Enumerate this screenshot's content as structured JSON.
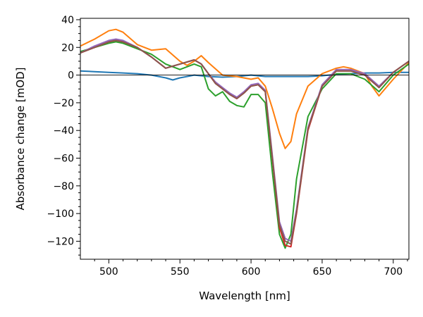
{
  "chart_data": {
    "type": "line",
    "title": "",
    "xlabel": "Wavelength [nm]",
    "ylabel": "Absorbance change [mOD]",
    "xlim": [
      480,
      711
    ],
    "ylim": [
      -133,
      41
    ],
    "x_ticks": [
      500,
      550,
      600,
      650,
      700
    ],
    "y_ticks": [
      40,
      20,
      0,
      -20,
      -40,
      -60,
      -80,
      -100,
      -120
    ],
    "x_tick_labels": [
      "500",
      "550",
      "600",
      "650",
      "700"
    ],
    "y_tick_labels": [
      "40",
      "20",
      "0",
      "−20",
      "−40",
      "−60",
      "−80",
      "−100",
      "−120"
    ],
    "zero_line": true,
    "grid": false,
    "legend": "none",
    "series": [
      {
        "color": "#1f77b4",
        "x": [
          480,
          490,
          500,
          510,
          520,
          530,
          540,
          545,
          550,
          555,
          560,
          570,
          580,
          590,
          600,
          610,
          620,
          630,
          640,
          650,
          660,
          670,
          680,
          690,
          700,
          711
        ],
        "y": [
          3,
          2.5,
          2,
          1.5,
          1,
          0,
          -2,
          -3.5,
          -2,
          -1,
          0,
          -1,
          -1.5,
          -1,
          0,
          -1,
          -1,
          -1,
          -1,
          -0.5,
          0.5,
          1,
          1.5,
          1.5,
          2,
          2
        ]
      },
      {
        "color": "#ff7f0e",
        "x": [
          480,
          490,
          500,
          505,
          510,
          520,
          530,
          540,
          550,
          555,
          560,
          565,
          570,
          580,
          590,
          600,
          605,
          610,
          615,
          620,
          624,
          628,
          632,
          640,
          650,
          660,
          665,
          670,
          680,
          685,
          690,
          700,
          711
        ],
        "y": [
          21,
          26,
          32,
          33,
          31,
          22,
          18,
          19,
          10,
          7,
          10,
          14,
          9,
          0,
          -1,
          -3,
          -2,
          -8,
          -24,
          -42,
          -53,
          -48,
          -28,
          -8,
          1,
          5,
          6,
          5,
          1,
          -8,
          -15,
          -3,
          9
        ]
      },
      {
        "color": "#2ca02c",
        "x": [
          480,
          490,
          500,
          505,
          510,
          520,
          530,
          540,
          550,
          560,
          565,
          570,
          575,
          580,
          585,
          590,
          595,
          600,
          605,
          610,
          615,
          620,
          624,
          628,
          632,
          640,
          650,
          660,
          670,
          680,
          690,
          700,
          711
        ],
        "y": [
          17,
          20,
          23,
          24,
          23,
          19,
          15,
          8,
          4,
          8,
          6,
          -10,
          -15,
          -12,
          -19,
          -22,
          -23,
          -14,
          -14,
          -20,
          -70,
          -115,
          -125,
          -115,
          -75,
          -30,
          -10,
          1,
          1,
          -3,
          -12,
          0,
          8
        ]
      },
      {
        "color": "#d62728",
        "x": [
          480,
          490,
          500,
          505,
          510,
          520,
          530,
          540,
          550,
          560,
          565,
          570,
          575,
          580,
          585,
          590,
          595,
          600,
          605,
          610,
          615,
          620,
          624,
          628,
          632,
          640,
          650,
          660,
          670,
          680,
          690,
          700,
          711
        ],
        "y": [
          16,
          20,
          24,
          25,
          24,
          20,
          13,
          5,
          8,
          11,
          8,
          1,
          -6,
          -10,
          -14,
          -17,
          -13,
          -8,
          -7,
          -12,
          -60,
          -110,
          -123,
          -124,
          -100,
          -40,
          -8,
          3,
          3,
          0,
          -9,
          2,
          10
        ]
      },
      {
        "color": "#9467bd",
        "x": [
          480,
          490,
          500,
          505,
          510,
          520,
          530,
          540,
          550,
          560,
          565,
          570,
          575,
          580,
          585,
          590,
          595,
          600,
          605,
          610,
          615,
          620,
          624,
          628,
          632,
          640,
          650,
          660,
          670,
          680,
          690,
          700,
          711
        ],
        "y": [
          16,
          21,
          25,
          26,
          25,
          20,
          13,
          5,
          8,
          11,
          8,
          1,
          -5,
          -9,
          -13,
          -16,
          -12,
          -7,
          -6,
          -11,
          -58,
          -106,
          -118,
          -120,
          -97,
          -38,
          -7,
          4,
          4,
          1,
          -8,
          2,
          10
        ]
      },
      {
        "color": "#8c564b",
        "x": [
          480,
          490,
          500,
          505,
          510,
          520,
          530,
          540,
          550,
          560,
          565,
          570,
          575,
          580,
          585,
          590,
          595,
          600,
          605,
          610,
          615,
          620,
          624,
          628,
          632,
          640,
          650,
          660,
          670,
          680,
          690,
          700,
          711
        ],
        "y": [
          16,
          20,
          24,
          25,
          24,
          20,
          13,
          5,
          8,
          11,
          8,
          1,
          -6,
          -10,
          -14,
          -17,
          -13,
          -8,
          -7,
          -12,
          -60,
          -108,
          -120,
          -122,
          -99,
          -39,
          -8,
          3,
          3,
          0,
          -9,
          2,
          10
        ]
      }
    ]
  }
}
